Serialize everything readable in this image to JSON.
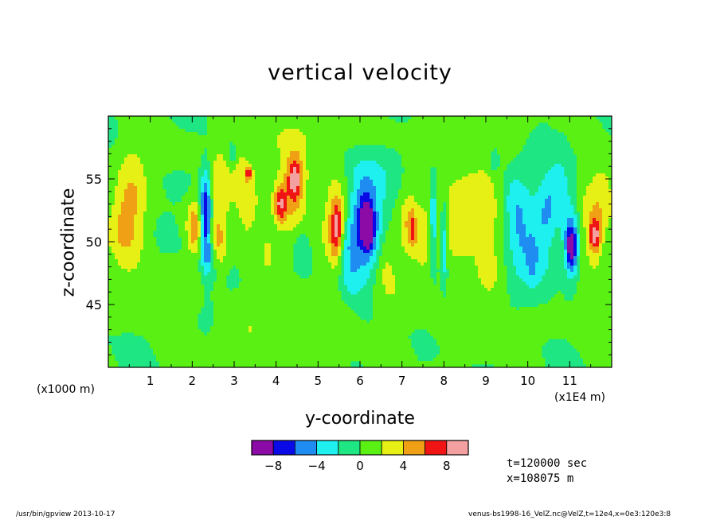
{
  "chart_data": {
    "type": "heatmap",
    "title": "vertical velocity",
    "xlabel": "y-coordinate",
    "ylabel": "z-coordinate",
    "x_unit": "(x1000 m)",
    "x_scale_note": "(x1E4 m)",
    "x_ticks": [
      "1",
      "2",
      "3",
      "4",
      "5",
      "6",
      "7",
      "8",
      "9",
      "10",
      "11"
    ],
    "y_ticks": [
      "45",
      "50",
      "55"
    ],
    "xlim": [
      0,
      12
    ],
    "ylim": [
      40,
      60
    ],
    "colorbar": {
      "levels": [
        -10,
        -8,
        -6,
        -4,
        -2,
        0,
        2,
        4,
        6,
        8,
        10
      ],
      "tick_labels": [
        "-8",
        "-4",
        "0",
        "4",
        "8"
      ],
      "colors": [
        "#8c0aa5",
        "#0a0ae6",
        "#1e8cf0",
        "#1ef0f0",
        "#1ee682",
        "#5af014",
        "#e6f014",
        "#f0a014",
        "#f01414",
        "#f5a0a0"
      ]
    },
    "background_color": "#1ee682",
    "features": [
      {
        "x": 0.55,
        "z": 53.0,
        "sx": 0.28,
        "sz": 3.5,
        "v": 3.8
      },
      {
        "x": 0.25,
        "z": 51.0,
        "sx": 0.25,
        "sz": 2.0,
        "v": 2.2
      },
      {
        "x": 1.5,
        "z": 57.0,
        "sx": 0.4,
        "sz": 1.0,
        "v": 1.4
      },
      {
        "x": 2.0,
        "z": 51.0,
        "sx": 0.12,
        "sz": 1.5,
        "v": 2.8
      },
      {
        "x": 2.32,
        "z": 52.0,
        "sx": 0.09,
        "sz": 2.4,
        "v": -9.0
      },
      {
        "x": 2.42,
        "z": 48.8,
        "sx": 0.12,
        "sz": 1.0,
        "v": -3.0
      },
      {
        "x": 2.1,
        "z": 51.2,
        "sx": 0.12,
        "sz": 1.5,
        "v": 3.0
      },
      {
        "x": 2.65,
        "z": 53.0,
        "sx": 0.16,
        "sz": 2.8,
        "v": 3.8
      },
      {
        "x": 2.6,
        "z": 49.5,
        "sx": 0.16,
        "sz": 1.2,
        "v": 2.6
      },
      {
        "x": 2.95,
        "z": 57.0,
        "sx": 0.08,
        "sz": 0.8,
        "v": -2.8
      },
      {
        "x": 3.15,
        "z": 55.0,
        "sx": 0.22,
        "sz": 2.5,
        "v": 2.8
      },
      {
        "x": 3.35,
        "z": 52.5,
        "sx": 0.18,
        "sz": 2.0,
        "v": 2.4
      },
      {
        "x": 3.35,
        "z": 55.5,
        "sx": 0.05,
        "sz": 0.4,
        "v": 6.0
      },
      {
        "x": 4.4,
        "z": 54.0,
        "sx": 0.3,
        "sz": 2.8,
        "v": 4.0
      },
      {
        "x": 4.45,
        "z": 55.0,
        "sx": 0.12,
        "sz": 1.2,
        "v": 6.2
      },
      {
        "x": 4.1,
        "z": 53.0,
        "sx": 0.1,
        "sz": 1.0,
        "v": 6.0
      },
      {
        "x": 4.6,
        "z": 49.8,
        "sx": 0.12,
        "sz": 1.0,
        "v": -2.4
      },
      {
        "x": 3.8,
        "z": 49.0,
        "sx": 0.1,
        "sz": 1.0,
        "v": 2.5
      },
      {
        "x": 5.45,
        "z": 51.5,
        "sx": 0.26,
        "sz": 3.0,
        "v": 4.2
      },
      {
        "x": 5.45,
        "z": 51.0,
        "sx": 0.1,
        "sz": 1.6,
        "v": 6.3
      },
      {
        "x": 5.65,
        "z": 49.5,
        "sx": 0.16,
        "sz": 1.4,
        "v": -3.5
      },
      {
        "x": 5.8,
        "z": 47.0,
        "sx": 0.22,
        "sz": 1.2,
        "v": -2.6
      },
      {
        "x": 6.1,
        "z": 51.0,
        "sx": 0.32,
        "sz": 2.4,
        "v": -7.0
      },
      {
        "x": 6.15,
        "z": 51.8,
        "sx": 0.12,
        "sz": 1.4,
        "v": -4.0
      },
      {
        "x": 6.2,
        "z": 50.8,
        "sx": 0.07,
        "sz": 0.8,
        "v": -6.0
      },
      {
        "x": 6.1,
        "z": 55.0,
        "sx": 0.4,
        "sz": 1.6,
        "v": -2.4
      },
      {
        "x": 6.6,
        "z": 49.0,
        "sx": 0.18,
        "sz": 2.0,
        "v": 3.0
      },
      {
        "x": 7.15,
        "z": 51.5,
        "sx": 0.16,
        "sz": 2.0,
        "v": 3.6
      },
      {
        "x": 7.25,
        "z": 51.0,
        "sx": 0.05,
        "sz": 1.0,
        "v": 3.2
      },
      {
        "x": 7.5,
        "z": 50.0,
        "sx": 0.16,
        "sz": 2.0,
        "v": 2.6
      },
      {
        "x": 7.75,
        "z": 51.5,
        "sx": 0.07,
        "sz": 2.5,
        "v": -5.0
      },
      {
        "x": 8.2,
        "z": 51.5,
        "sx": 0.4,
        "sz": 2.8,
        "v": 2.6
      },
      {
        "x": 8.0,
        "z": 50.0,
        "sx": 0.06,
        "sz": 2.5,
        "v": -4.5
      },
      {
        "x": 8.9,
        "z": 53.5,
        "sx": 0.4,
        "sz": 2.6,
        "v": 2.8
      },
      {
        "x": 9.2,
        "z": 56.5,
        "sx": 0.08,
        "sz": 0.7,
        "v": -3.0
      },
      {
        "x": 9.1,
        "z": 48.0,
        "sx": 0.2,
        "sz": 1.8,
        "v": 2.4
      },
      {
        "x": 9.6,
        "z": 53.0,
        "sx": 0.2,
        "sz": 2.0,
        "v": -2.6
      },
      {
        "x": 9.85,
        "z": 50.5,
        "sx": 0.18,
        "sz": 2.6,
        "v": -3.6
      },
      {
        "x": 10.1,
        "z": 48.5,
        "sx": 0.1,
        "sz": 1.6,
        "v": -3.2
      },
      {
        "x": 10.35,
        "z": 50.5,
        "sx": 0.18,
        "sz": 3.0,
        "v": -3.5
      },
      {
        "x": 10.55,
        "z": 53.5,
        "sx": 0.14,
        "sz": 2.0,
        "v": -2.6
      },
      {
        "x": 10.8,
        "z": 54.5,
        "sx": 0.14,
        "sz": 2.0,
        "v": -2.4
      },
      {
        "x": 11.0,
        "z": 50.5,
        "sx": 0.14,
        "sz": 2.6,
        "v": -3.4
      },
      {
        "x": 11.05,
        "z": 49.5,
        "sx": 0.09,
        "sz": 1.2,
        "v": -8.0
      },
      {
        "x": 11.55,
        "z": 51.5,
        "sx": 0.22,
        "sz": 3.0,
        "v": 3.4
      },
      {
        "x": 11.6,
        "z": 50.5,
        "sx": 0.1,
        "sz": 0.9,
        "v": 6.5
      },
      {
        "x": 11.85,
        "z": 54.0,
        "sx": 0.2,
        "sz": 2.0,
        "v": 2.4
      },
      {
        "x": 1.2,
        "z": 46.0,
        "sx": 0.6,
        "sz": 1.6,
        "v": 1.4
      },
      {
        "x": 3.2,
        "z": 43.0,
        "sx": 0.8,
        "sz": 2.0,
        "v": 1.3
      },
      {
        "x": 5.0,
        "z": 42.0,
        "sx": 0.9,
        "sz": 1.8,
        "v": 1.2
      },
      {
        "x": 7.0,
        "z": 45.5,
        "sx": 0.8,
        "sz": 1.5,
        "v": 1.3
      },
      {
        "x": 9.0,
        "z": 43.5,
        "sx": 0.8,
        "sz": 2.0,
        "v": 1.2
      },
      {
        "x": 11.5,
        "z": 45.0,
        "sx": 0.6,
        "sz": 1.5,
        "v": 1.3
      },
      {
        "x": 4.5,
        "z": 58.5,
        "sx": 1.2,
        "sz": 1.0,
        "v": 1.2
      },
      {
        "x": 8.5,
        "z": 59.0,
        "sx": 1.2,
        "sz": 0.8,
        "v": 1.2
      },
      {
        "x": 2.4,
        "z": 44.5,
        "sx": 0.3,
        "sz": 1.2,
        "v": -0.8
      },
      {
        "x": 6.3,
        "z": 43.5,
        "sx": 0.4,
        "sz": 1.5,
        "v": -0.6
      },
      {
        "x": 9.8,
        "z": 45.5,
        "sx": 0.4,
        "sz": 1.2,
        "v": -0.6
      }
    ]
  },
  "info": {
    "time": "t=120000 sec",
    "position": "x=108075 m"
  },
  "footer": {
    "left": "/usr/bin/gpview  2013-10-17",
    "right": "venus-bs1998-16_VelZ.nc@VelZ,t=12e4,x=0e3:120e3:8"
  }
}
